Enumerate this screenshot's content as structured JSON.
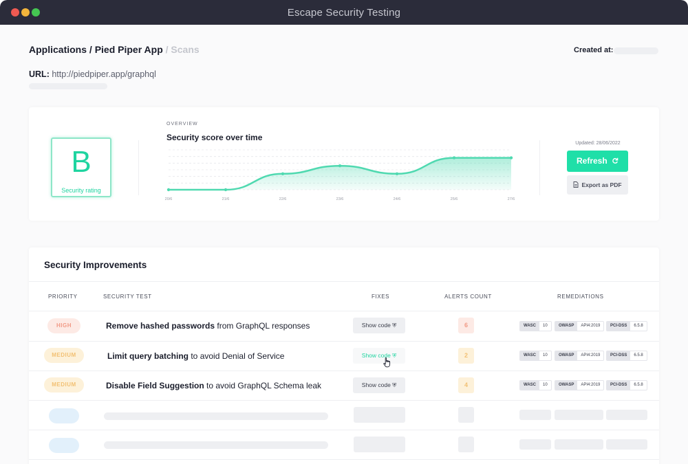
{
  "window": {
    "title": "Escape Security Testing"
  },
  "breadcrumb": {
    "applications": "Applications",
    "sep1": " / ",
    "app": "Pied Piper App",
    "sep2": " / ",
    "current": "Scans"
  },
  "created": {
    "label": "Created at:"
  },
  "url": {
    "label": "URL:",
    "value": "http://piedpiper.app/graphql"
  },
  "rating": {
    "grade": "B",
    "label": "Security rating"
  },
  "overview": {
    "eyebrow": "OVERVIEW",
    "title": "Security score over time",
    "updated": "Updated: 28/06/2022",
    "refresh_label": "Refresh",
    "export_label": "Export as PDF"
  },
  "chart_data": {
    "type": "area",
    "title": "Security score over time",
    "categories": [
      "20/6",
      "21/6",
      "22/6",
      "23/6",
      "24/6",
      "25/6",
      "27/6"
    ],
    "values": [
      0,
      0,
      2,
      3,
      2,
      4,
      4
    ],
    "ylim": [
      0,
      5
    ],
    "grid": true,
    "color": "#4fd9b0"
  },
  "improvements": {
    "title": "Security Improvements",
    "columns": [
      "PRIORITY",
      "SECURITY TEST",
      "FIXES",
      "ALERTS COUNT",
      "REMEDIATIONS"
    ],
    "rows": [
      {
        "priority": "HIGH",
        "test_bold": "Remove hashed passwords",
        "test_rest": " from GraphQL responses",
        "fix": "Show code",
        "alerts": "6",
        "wasc_k": "WASC",
        "wasc_v": "10",
        "owasp_k": "OWASP",
        "owasp_v": "API4:2019",
        "pci_k": "PCI-DSS",
        "pci_v": "6.5.8"
      },
      {
        "priority": "MEDIUM",
        "test_bold": "Limit query batching",
        "test_rest": " to avoid Denial of Service",
        "fix": "Show code",
        "alerts": "2",
        "wasc_k": "WASC",
        "wasc_v": "10",
        "owasp_k": "OWASP",
        "owasp_v": "API4:2019",
        "pci_k": "PCI-DSS",
        "pci_v": "6.5.8"
      },
      {
        "priority": "MEDIUM",
        "test_bold": "Disable Field Suggestion",
        "test_rest": " to avoid GraphQL Schema leak",
        "fix": "Show code",
        "alerts": "4",
        "wasc_k": "WASC",
        "wasc_v": "10",
        "owasp_k": "OWASP",
        "owasp_v": "API4:2019",
        "pci_k": "PCI-DSS",
        "pci_v": "6.5.8"
      }
    ]
  },
  "colors": {
    "accent": "#1fdfa8",
    "high": "#f19a86",
    "medium": "#f2c073",
    "titlebar": "#2b2c3a"
  },
  "icons": {
    "refresh": "refresh-icon",
    "pdf": "document-icon",
    "shield": "shield-icon",
    "cursor": "hand-pointer-icon"
  }
}
